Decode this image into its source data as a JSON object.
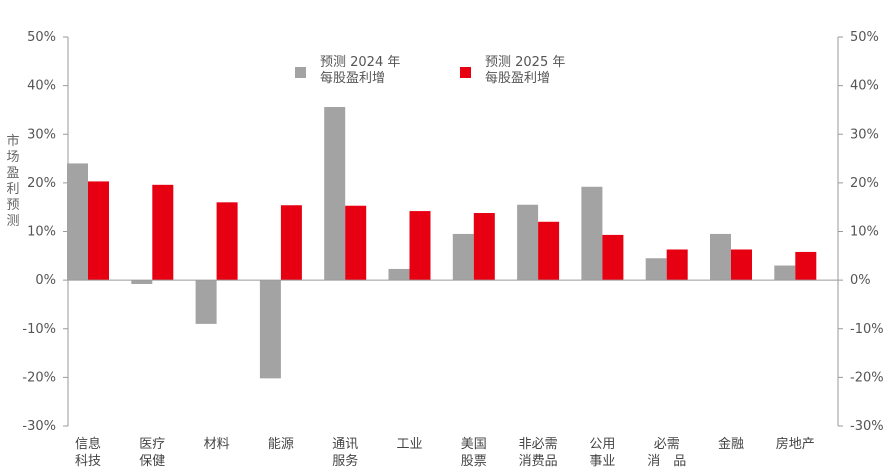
{
  "chart_data": {
    "type": "bar",
    "title": "",
    "ylabel": "市场盈利预测",
    "categories": [
      [
        "信息",
        "科技"
      ],
      [
        "医疗",
        "保健"
      ],
      [
        "材料"
      ],
      [
        "能源"
      ],
      [
        "通讯",
        "服务"
      ],
      [
        "工业"
      ],
      [
        "美国",
        "股票"
      ],
      [
        "非必需",
        "消费品"
      ],
      [
        "公用",
        "事业"
      ],
      [
        "必需",
        "消　品"
      ],
      [
        "金融"
      ],
      [
        "房地产"
      ]
    ],
    "series": [
      {
        "name": [
          "预测 2024 年",
          "每股盈利增"
        ],
        "color": "#a3a3a3",
        "values": [
          24,
          -0.8,
          -9,
          -20.2,
          35.6,
          2.3,
          9.5,
          15.5,
          19.2,
          4.5,
          9.5,
          3
        ]
      },
      {
        "name": [
          "预测 2025 年",
          "每股盈利增"
        ],
        "color": "#e60012",
        "values": [
          20.3,
          19.6,
          16,
          15.4,
          15.3,
          14.2,
          13.8,
          12,
          9.3,
          6.3,
          6.3,
          5.8
        ]
      }
    ],
    "ylim": [
      -30,
      50
    ],
    "yticks": [
      -30,
      -20,
      -10,
      0,
      10,
      20,
      30,
      40,
      50
    ],
    "tick_suffix": "%",
    "secondary_axis": true,
    "grid": false,
    "legend_position": "top"
  }
}
